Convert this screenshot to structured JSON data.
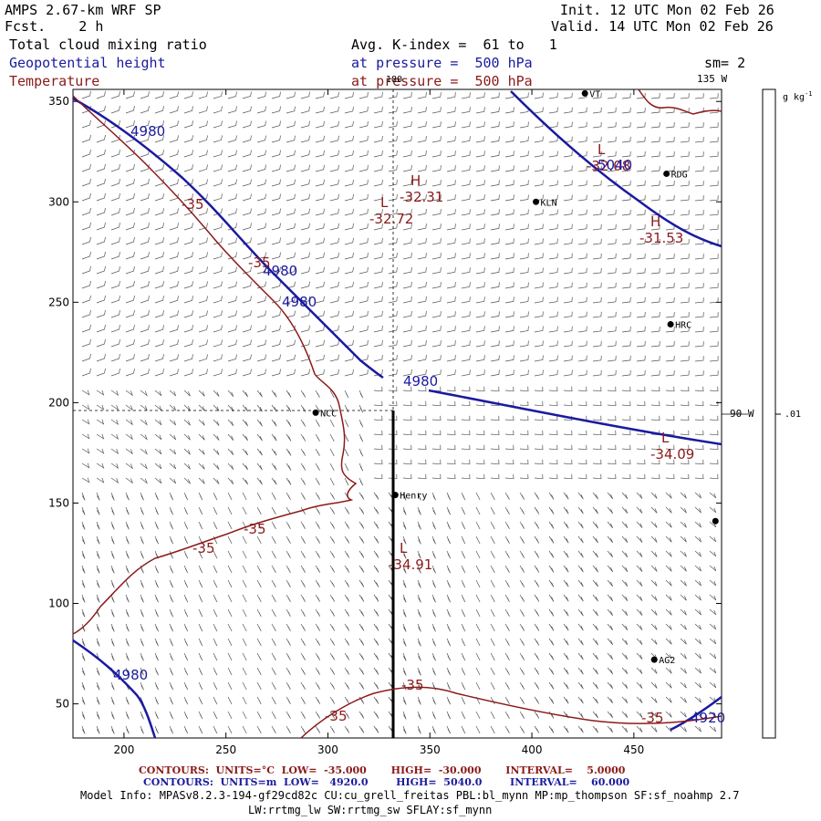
{
  "header": {
    "model": "AMPS 2.67-km WRF SP",
    "fcst_label": "Fcst.",
    "fcst_value": "2 h",
    "init_label": "Init.",
    "init_value": "12 UTC Mon 02 Feb 26",
    "valid_label": "Valid.",
    "valid_value": "14 UTC Mon 02 Feb 26",
    "field1": "Total cloud mixing ratio",
    "field2": "Geopotential height",
    "field3": "Temperature",
    "avg_text": "Avg. K-index =  61 to   1",
    "pressure1": "at pressure =  500 hPa",
    "pressure2": "at pressure =  500 hPa",
    "sm": "sm= 2"
  },
  "map": {
    "lon_label_top": "180",
    "lon_label_135": "135 W",
    "lon_label_90": "90 W",
    "x_ticks": [
      200,
      250,
      300,
      350,
      400,
      450
    ],
    "y_ticks": [
      50,
      100,
      150,
      200,
      250,
      300,
      350
    ],
    "x_range": [
      175,
      493
    ],
    "y_range": [
      33,
      356
    ],
    "stations": [
      {
        "name": "NCC",
        "x": 294,
        "y": 195
      },
      {
        "name": "KLN",
        "x": 402,
        "y": 300
      },
      {
        "name": "RDG",
        "x": 466,
        "y": 314
      },
      {
        "name": "HRC",
        "x": 468,
        "y": 239
      },
      {
        "name": "Henry",
        "x": 333,
        "y": 154
      },
      {
        "name": "AG2",
        "x": 460,
        "y": 72
      },
      {
        "name": "VT",
        "x": 426,
        "y": 354
      },
      {
        "name": "",
        "x": 490,
        "y": 141
      }
    ],
    "extrema": [
      {
        "type": "L",
        "value": "-32.72",
        "x": 417,
        "y": 321
      },
      {
        "type": "H",
        "value": "-32.31",
        "x": 450,
        "y": 297
      },
      {
        "type": "L",
        "value": "-32.08",
        "x": 655,
        "y": 263
      },
      {
        "type": "H",
        "value": "-31.53",
        "x": 713,
        "y": 342
      },
      {
        "type": "L",
        "value": "-34.09",
        "x": 725,
        "y": 579
      },
      {
        "type": "L",
        "value": "-34.91",
        "x": 438,
        "y": 700
      }
    ],
    "height_labels": [
      {
        "text": "4980",
        "x": 143,
        "y": 149
      },
      {
        "text": "4980",
        "x": 288,
        "y": 302
      },
      {
        "text": "4980",
        "x": 309,
        "y": 336
      },
      {
        "text": "4980",
        "x": 442,
        "y": 423
      },
      {
        "text": "5040",
        "x": 655,
        "y": 186
      },
      {
        "text": "4980",
        "x": 124,
        "y": 745
      },
      {
        "text": "4920",
        "x": 757,
        "y": 792
      }
    ],
    "temp_labels": [
      {
        "text": "-35",
        "x": 199,
        "y": 229
      },
      {
        "text": "-35",
        "x": 272,
        "y": 293
      },
      {
        "text": "-35",
        "x": 267,
        "y": 585
      },
      {
        "text": "-35",
        "x": 211,
        "y": 606
      },
      {
        "text": "-35",
        "x": 440,
        "y": 756
      },
      {
        "text": "-35",
        "x": 356,
        "y": 790
      },
      {
        "text": "-35",
        "x": 703,
        "y": 792
      }
    ]
  },
  "colorbar": {
    "units": "g kg",
    "units_sup": "-1",
    "tick_label": ".01"
  },
  "footer": {
    "line1": "CONTOURS:  UNITS=°C  LOW=  -35.000       HIGH=  -30.000       INTERVAL=    5.0000",
    "line2": "CONTOURS:  UNITS=m  LOW=   4920.0        HIGH=  5040.0        INTERVAL=    60.000",
    "info1": "Model Info: MPASv8.2.3-194-gf29cd82c CU:cu_grell_freitas PBL:bl_mynn MP:mp_thompson SF:sf_noahmp 2.7",
    "info2": "LW:rrtmg_lw SW:rrtmg_sw SFLAY:sf_mynn"
  },
  "colors": {
    "height": "#1a1aa0",
    "temperature": "#8b1a1a",
    "frame": "#000000"
  }
}
